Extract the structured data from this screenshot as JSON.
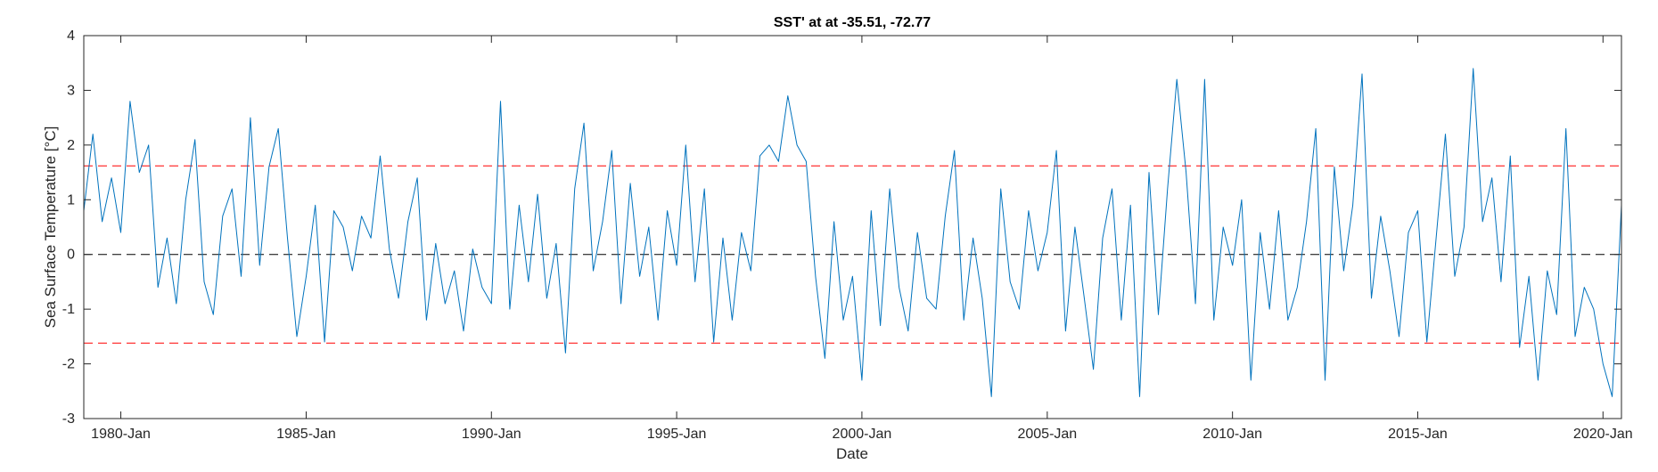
{
  "chart_data": {
    "type": "line",
    "title": "SST' at at -35.51, -72.77",
    "xlabel": "Date",
    "ylabel": "Sea Surface Temperature [°C]",
    "ylim": [
      -3,
      4
    ],
    "yticks": [
      -3,
      -2,
      -1,
      0,
      1,
      2,
      3,
      4
    ],
    "xlim": [
      "1979-01-01",
      "2020-07-01"
    ],
    "xticks": [
      {
        "date": "1980-01-01",
        "label": "1980-Jan"
      },
      {
        "date": "1985-01-01",
        "label": "1985-Jan"
      },
      {
        "date": "1990-01-01",
        "label": "1990-Jan"
      },
      {
        "date": "1995-01-01",
        "label": "1995-Jan"
      },
      {
        "date": "2000-01-01",
        "label": "2000-Jan"
      },
      {
        "date": "2005-01-01",
        "label": "2005-Jan"
      },
      {
        "date": "2010-01-01",
        "label": "2010-Jan"
      },
      {
        "date": "2015-01-01",
        "label": "2015-Jan"
      },
      {
        "date": "2020-01-01",
        "label": "2020-Jan"
      }
    ],
    "grid": false,
    "legend": "none",
    "reference_lines": [
      {
        "y": 1.62,
        "color": "#ff0000",
        "style": "dashed"
      },
      {
        "y": -1.62,
        "color": "#ff0000",
        "style": "dashed"
      },
      {
        "y": 0,
        "color": "#000000",
        "style": "dashed"
      }
    ],
    "series": [
      {
        "color": "#0072bd",
        "x": [
          "1979-01-01",
          "1979-04-01",
          "1979-07-01",
          "1979-10-01",
          "1980-01-01",
          "1980-04-01",
          "1980-07-01",
          "1980-10-01",
          "1981-01-01",
          "1981-04-01",
          "1981-07-01",
          "1981-10-01",
          "1982-01-01",
          "1982-04-01",
          "1982-07-01",
          "1982-10-01",
          "1983-01-01",
          "1983-04-01",
          "1983-07-01",
          "1983-10-01",
          "1984-01-01",
          "1984-04-01",
          "1984-07-01",
          "1984-10-01",
          "1985-01-01",
          "1985-04-01",
          "1985-07-01",
          "1985-10-01",
          "1986-01-01",
          "1986-04-01",
          "1986-07-01",
          "1986-10-01",
          "1987-01-01",
          "1987-04-01",
          "1987-07-01",
          "1987-10-01",
          "1988-01-01",
          "1988-04-01",
          "1988-07-01",
          "1988-10-01",
          "1989-01-01",
          "1989-04-01",
          "1989-07-01",
          "1989-10-01",
          "1990-01-01",
          "1990-04-01",
          "1990-07-01",
          "1990-10-01",
          "1991-01-01",
          "1991-04-01",
          "1991-07-01",
          "1991-10-01",
          "1992-01-01",
          "1992-04-01",
          "1992-07-01",
          "1992-10-01",
          "1993-01-01",
          "1993-04-01",
          "1993-07-01",
          "1993-10-01",
          "1994-01-01",
          "1994-04-01",
          "1994-07-01",
          "1994-10-01",
          "1995-01-01",
          "1995-04-01",
          "1995-07-01",
          "1995-10-01",
          "1996-01-01",
          "1996-04-01",
          "1996-07-01",
          "1996-10-01",
          "1997-01-01",
          "1997-04-01",
          "1997-07-01",
          "1997-10-01",
          "1998-01-01",
          "1998-04-01",
          "1998-07-01",
          "1998-10-01",
          "1999-01-01",
          "1999-04-01",
          "1999-07-01",
          "1999-10-01",
          "2000-01-01",
          "2000-04-01",
          "2000-07-01",
          "2000-10-01",
          "2001-01-01",
          "2001-04-01",
          "2001-07-01",
          "2001-10-01",
          "2002-01-01",
          "2002-04-01",
          "2002-07-01",
          "2002-10-01",
          "2003-01-01",
          "2003-04-01",
          "2003-07-01",
          "2003-10-01",
          "2004-01-01",
          "2004-04-01",
          "2004-07-01",
          "2004-10-01",
          "2005-01-01",
          "2005-04-01",
          "2005-07-01",
          "2005-10-01",
          "2006-01-01",
          "2006-04-01",
          "2006-07-01",
          "2006-10-01",
          "2007-01-01",
          "2007-04-01",
          "2007-07-01",
          "2007-10-01",
          "2008-01-01",
          "2008-04-01",
          "2008-07-01",
          "2008-10-01",
          "2009-01-01",
          "2009-04-01",
          "2009-07-01",
          "2009-10-01",
          "2010-01-01",
          "2010-04-01",
          "2010-07-01",
          "2010-10-01",
          "2011-01-01",
          "2011-04-01",
          "2011-07-01",
          "2011-10-01",
          "2012-01-01",
          "2012-04-01",
          "2012-07-01",
          "2012-10-01",
          "2013-01-01",
          "2013-04-01",
          "2013-07-01",
          "2013-10-01",
          "2014-01-01",
          "2014-04-01",
          "2014-07-01",
          "2014-10-01",
          "2015-01-01",
          "2015-04-01",
          "2015-07-01",
          "2015-10-01",
          "2016-01-01",
          "2016-04-01",
          "2016-07-01",
          "2016-10-01",
          "2017-01-01",
          "2017-04-01",
          "2017-07-01",
          "2017-10-01",
          "2018-01-01",
          "2018-04-01",
          "2018-07-01",
          "2018-10-01",
          "2019-01-01",
          "2019-04-01",
          "2019-07-01",
          "2019-10-01",
          "2020-01-01",
          "2020-04-01",
          "2020-07-01"
        ],
        "y": [
          0.8,
          2.2,
          0.6,
          1.4,
          0.4,
          2.8,
          1.5,
          2.0,
          -0.6,
          0.3,
          -0.9,
          1.0,
          2.1,
          -0.5,
          -1.1,
          0.7,
          1.2,
          -0.4,
          2.5,
          -0.2,
          1.6,
          2.3,
          0.3,
          -1.5,
          -0.4,
          0.9,
          -1.6,
          0.8,
          0.5,
          -0.3,
          0.7,
          0.3,
          1.8,
          0.1,
          -0.8,
          0.6,
          1.4,
          -1.2,
          0.2,
          -0.9,
          -0.3,
          -1.4,
          0.1,
          -0.6,
          -0.9,
          2.8,
          -1.0,
          0.9,
          -0.5,
          1.1,
          -0.8,
          0.2,
          -1.8,
          1.2,
          2.4,
          -0.3,
          0.6,
          1.9,
          -0.9,
          1.3,
          -0.4,
          0.5,
          -1.2,
          0.8,
          -0.2,
          2.0,
          -0.5,
          1.2,
          -1.6,
          0.3,
          -1.2,
          0.4,
          -0.3,
          1.8,
          2.0,
          1.7,
          2.9,
          2.0,
          1.7,
          -0.4,
          -1.9,
          0.6,
          -1.2,
          -0.4,
          -2.3,
          0.8,
          -1.3,
          1.2,
          -0.6,
          -1.4,
          0.4,
          -0.8,
          -1.0,
          0.7,
          1.9,
          -1.2,
          0.3,
          -0.8,
          -2.6,
          1.2,
          -0.5,
          -1.0,
          0.8,
          -0.3,
          0.4,
          1.9,
          -1.4,
          0.5,
          -0.8,
          -2.1,
          0.3,
          1.2,
          -1.2,
          0.9,
          -2.6,
          1.5,
          -1.1,
          1.2,
          3.2,
          1.5,
          -0.9,
          3.2,
          -1.2,
          0.5,
          -0.2,
          1.0,
          -2.3,
          0.4,
          -1.0,
          0.8,
          -1.2,
          -0.6,
          0.6,
          2.3,
          -2.3,
          1.6,
          -0.3,
          0.9,
          3.3,
          -0.8,
          0.7,
          -0.3,
          -1.5,
          0.4,
          0.8,
          -1.6,
          0.3,
          2.2,
          -0.4,
          0.5,
          3.4,
          0.6,
          1.4,
          -0.5,
          1.8,
          -1.7,
          -0.4,
          -2.3,
          -0.3,
          -1.1,
          2.3,
          -1.5,
          -0.6,
          -1.0,
          -2.0,
          -2.6,
          0.9
        ]
      }
    ]
  }
}
